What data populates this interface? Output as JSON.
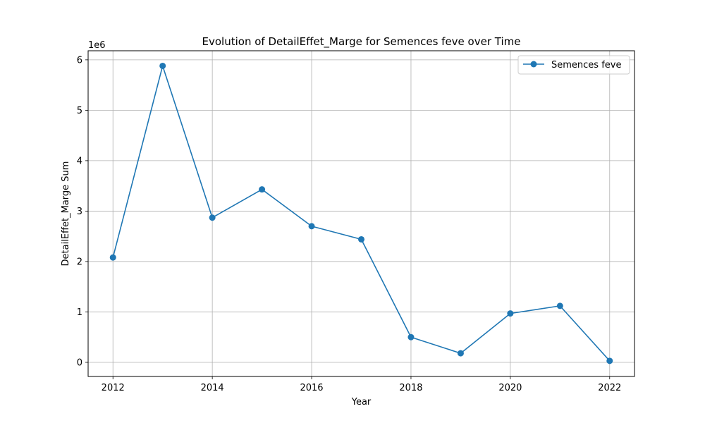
{
  "chart_data": {
    "type": "line",
    "title": "Evolution of DetailEffet_Marge for Semences feve over Time",
    "xlabel": "Year",
    "ylabel": "DetailEffet_Marge Sum",
    "y_offset_label": "1e6",
    "xlim": [
      2011.5,
      2022.5
    ],
    "ylim": [
      -280000,
      6180000
    ],
    "x_ticks": [
      2012,
      2014,
      2016,
      2018,
      2020,
      2022
    ],
    "y_ticks": [
      0,
      1000000,
      2000000,
      3000000,
      4000000,
      5000000,
      6000000
    ],
    "y_tick_labels": [
      "0",
      "1",
      "2",
      "3",
      "4",
      "5",
      "6"
    ],
    "grid": true,
    "legend_position": "top-right",
    "colors": {
      "series": "#1f77b4",
      "grid": "#b0b0b0",
      "axes": "#000000"
    },
    "x": [
      2012,
      2013,
      2014,
      2015,
      2016,
      2017,
      2018,
      2019,
      2020,
      2021,
      2022
    ],
    "series": [
      {
        "name": "Semences feve",
        "values": [
          2080000,
          5880000,
          2870000,
          3430000,
          2700000,
          2440000,
          500000,
          180000,
          970000,
          1120000,
          30000
        ]
      }
    ]
  }
}
